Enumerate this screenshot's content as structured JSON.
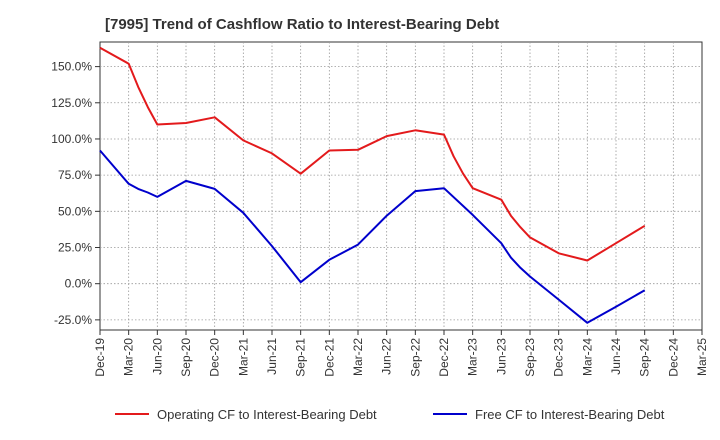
{
  "chart_data": {
    "type": "line",
    "title": "[7995]  Trend of Cashflow Ratio to Interest-Bearing Debt",
    "xlabel": "",
    "ylabel": "",
    "x_tick_labels": [
      "Dec-19",
      "Mar-20",
      "Jun-20",
      "Sep-20",
      "Dec-20",
      "Mar-21",
      "Jun-21",
      "Sep-21",
      "Dec-21",
      "Mar-22",
      "Jun-22",
      "Sep-22",
      "Dec-22",
      "Mar-23",
      "Jun-23",
      "Sep-23",
      "Dec-23",
      "Mar-24",
      "Jun-24",
      "Sep-24",
      "Dec-24",
      "Mar-25"
    ],
    "y_tick_labels": [
      "150.0%",
      "125.0%",
      "100.0%",
      "75.0%",
      "50.0%",
      "25.0%",
      "0.0%",
      "-25.0%"
    ],
    "y_ticks": [
      150,
      125,
      100,
      75,
      50,
      25,
      0,
      -25
    ],
    "ylim": [
      -32,
      167
    ],
    "grid": true,
    "legend_position": "bottom",
    "series": [
      {
        "name": "Operating CF to Interest-Bearing Debt",
        "color": "#e31a1c",
        "points": [
          [
            "Dec-19",
            163
          ],
          [
            "Mar-20",
            152
          ],
          [
            "Apr-20",
            136
          ],
          [
            "May-20",
            122
          ],
          [
            "Jun-20",
            110
          ],
          [
            "Sep-20",
            111
          ],
          [
            "Dec-20",
            115
          ],
          [
            "Mar-21",
            99
          ],
          [
            "Jun-21",
            90
          ],
          [
            "Sep-21",
            76
          ],
          [
            "Dec-21",
            92
          ],
          [
            "Mar-22",
            92.5
          ],
          [
            "Jun-22",
            102
          ],
          [
            "Sep-22",
            106
          ],
          [
            "Dec-22",
            103
          ],
          [
            "Jan-23",
            88
          ],
          [
            "Feb-23",
            76
          ],
          [
            "Mar-23",
            66
          ],
          [
            "Jun-23",
            58
          ],
          [
            "Jul-23",
            47
          ],
          [
            "Aug-23",
            39
          ],
          [
            "Sep-23",
            32
          ],
          [
            "Dec-23",
            21
          ],
          [
            "Mar-24",
            16
          ],
          [
            "Jun-24",
            28
          ],
          [
            "Sep-24",
            40
          ]
        ]
      },
      {
        "name": "Free CF to Interest-Bearing Debt",
        "color": "#0000cc",
        "points": [
          [
            "Dec-19",
            92
          ],
          [
            "Mar-20",
            69
          ],
          [
            "Apr-20",
            65.5
          ],
          [
            "May-20",
            63
          ],
          [
            "Jun-20",
            60
          ],
          [
            "Sep-20",
            71
          ],
          [
            "Dec-20",
            65.5
          ],
          [
            "Mar-21",
            49
          ],
          [
            "Jun-21",
            26
          ],
          [
            "Sep-21",
            1
          ],
          [
            "Dec-21",
            16.5
          ],
          [
            "Mar-22",
            27
          ],
          [
            "Jun-22",
            47
          ],
          [
            "Sep-22",
            64
          ],
          [
            "Dec-22",
            66
          ],
          [
            "Mar-23",
            47.5
          ],
          [
            "Jun-23",
            28
          ],
          [
            "Jul-23",
            18
          ],
          [
            "Aug-23",
            11
          ],
          [
            "Sep-23",
            5
          ],
          [
            "Dec-23",
            -11
          ],
          [
            "Mar-24",
            -27
          ],
          [
            "Jun-24",
            -16
          ],
          [
            "Sep-24",
            -4.5
          ]
        ]
      }
    ]
  }
}
